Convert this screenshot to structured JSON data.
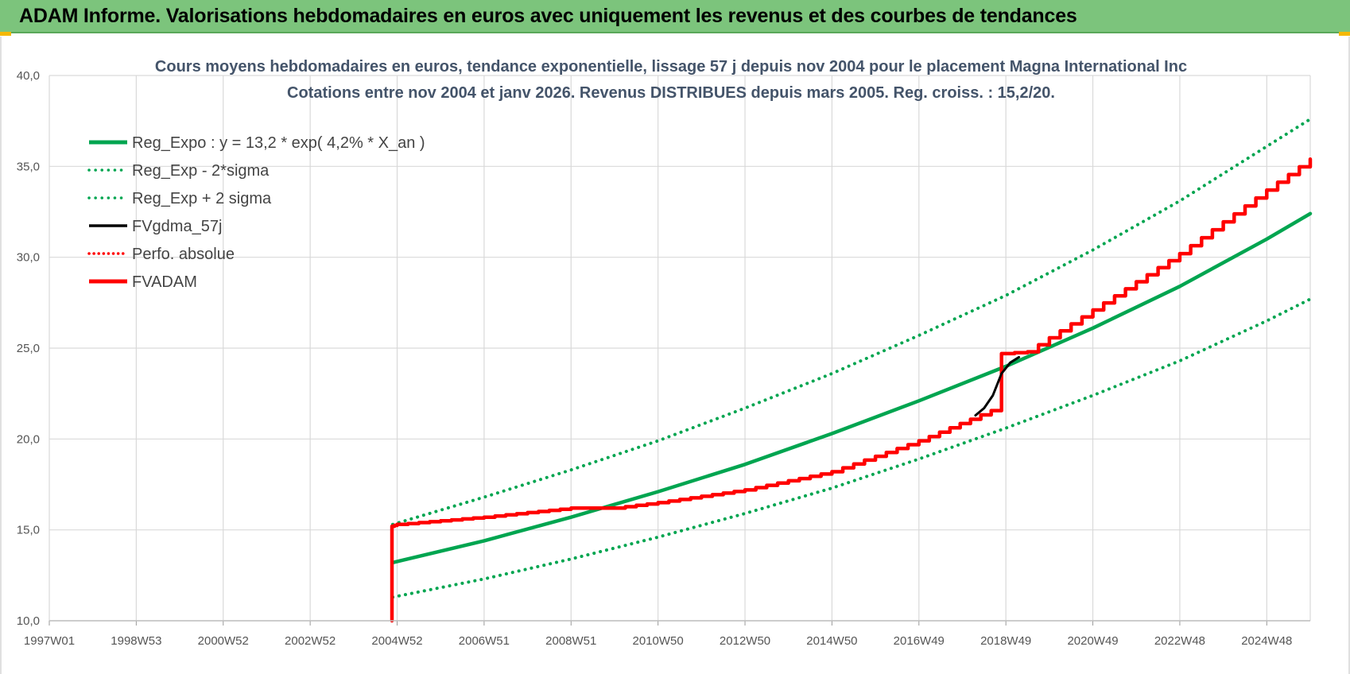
{
  "banner": {
    "title": "ADAM Informe. Valorisations hebdomadaires en euros avec uniquement les revenus et des courbes de tendances"
  },
  "chart_data": {
    "type": "line",
    "title_lines": [
      "Cours moyens hebdomadaires en euros, tendance exponentielle, lissage 57 j depuis nov 2004 pour le placement Magna International Inc",
      "Cotations entre nov 2004 et janv 2026. Revenus DISTRIBUES depuis mars 2005. Reg. croiss. : 15,2/20."
    ],
    "x_ticks": [
      "1997W01",
      "1998W53",
      "2000W52",
      "2002W52",
      "2004W52",
      "2006W51",
      "2008W51",
      "2010W50",
      "2012W50",
      "2014W50",
      "2016W49",
      "2018W49",
      "2020W49",
      "2022W48",
      "2024W48"
    ],
    "x_tick_years": [
      1997.0,
      1999.0,
      2001.0,
      2003.0,
      2005.0,
      2007.0,
      2009.0,
      2011.0,
      2013.0,
      2015.0,
      2017.0,
      2019.0,
      2021.0,
      2023.0,
      2025.0
    ],
    "xlim": [
      1997.0,
      2026.0
    ],
    "ylim": [
      10,
      40
    ],
    "y_ticks": [
      "10,0",
      "15,0",
      "20,0",
      "25,0",
      "30,0",
      "35,0",
      "40,0"
    ],
    "y_tick_values": [
      10,
      15,
      20,
      25,
      30,
      35,
      40
    ],
    "grid": true,
    "legend_position": "top-left",
    "series": [
      {
        "name": "Reg_Expo : y = 13,2 * exp( 4,2% *  X_an )",
        "color": "#00a550",
        "style": "solid",
        "x": [
          2004.9,
          2007,
          2009,
          2011,
          2013,
          2015,
          2017,
          2019,
          2021,
          2023,
          2025,
          2026.0
        ],
        "y": [
          13.2,
          14.4,
          15.7,
          17.1,
          18.6,
          20.3,
          22.1,
          24.0,
          26.1,
          28.4,
          31.0,
          32.4
        ]
      },
      {
        "name": "Reg_Exp - 2*sigma",
        "color": "#00a550",
        "style": "dotted",
        "x": [
          2004.9,
          2007,
          2009,
          2011,
          2013,
          2015,
          2017,
          2019,
          2021,
          2023,
          2025,
          2026.0
        ],
        "y": [
          11.3,
          12.3,
          13.4,
          14.6,
          15.9,
          17.3,
          18.9,
          20.6,
          22.4,
          24.3,
          26.5,
          27.7
        ]
      },
      {
        "name": "Reg_Exp + 2 sigma",
        "color": "#00a550",
        "style": "dotted",
        "x": [
          2004.9,
          2007,
          2009,
          2011,
          2013,
          2015,
          2017,
          2019,
          2021,
          2023,
          2025,
          2026.0
        ],
        "y": [
          15.3,
          16.8,
          18.3,
          19.9,
          21.7,
          23.6,
          25.7,
          27.9,
          30.4,
          33.1,
          36.1,
          37.6
        ]
      },
      {
        "name": "FVgdma_57j",
        "color": "#000000",
        "style": "solid",
        "x": [
          2018.3,
          2018.5,
          2018.7,
          2018.9,
          2019.1,
          2019.3
        ],
        "y": [
          21.3,
          21.7,
          22.4,
          23.6,
          24.2,
          24.5
        ]
      },
      {
        "name": "Perfo. absolue",
        "color": "#ff0000",
        "style": "dotted",
        "x": [],
        "y": []
      },
      {
        "name": "FVADAM",
        "color": "#ff0000",
        "style": "solid",
        "x": [
          2004.88,
          2004.88,
          2005,
          2007,
          2009,
          2010,
          2011,
          2013,
          2015,
          2017,
          2018.9,
          2018.9,
          2019.5,
          2021,
          2023,
          2025,
          2026.0
        ],
        "y": [
          10.0,
          15.2,
          15.3,
          15.7,
          16.2,
          16.2,
          16.5,
          17.2,
          18.2,
          19.9,
          21.8,
          24.7,
          24.8,
          27.1,
          30.2,
          33.7,
          35.4
        ]
      }
    ]
  }
}
